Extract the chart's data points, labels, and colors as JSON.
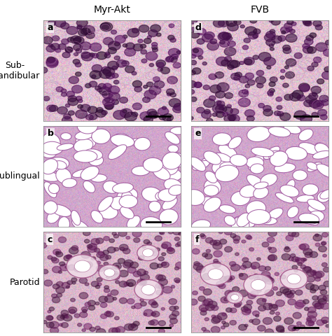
{
  "title_left": "Myr-Akt",
  "title_right": "FVB",
  "row_labels": [
    "Sub-\nmandibular",
    "Sublingual",
    "Parotid"
  ],
  "panel_labels": [
    [
      "a",
      "d"
    ],
    [
      "b",
      "e"
    ],
    [
      "c",
      "f"
    ]
  ],
  "background_color": "#ffffff",
  "label_fontsize": 9,
  "title_fontsize": 10,
  "panel_label_fontsize": 9,
  "colors": {
    "submandibular": {
      "base": "#d4a0c0",
      "cell_dark": "#7b3f7a",
      "cell_mid": "#c080a0",
      "bg": "#f0d0e0"
    },
    "sublingual": {
      "base": "#c090b8",
      "cell_dark": "#8050a0",
      "vacuole": "#ffffff",
      "bg": "#e8c0d8"
    },
    "parotid": {
      "base": "#d8a8c8",
      "cell_dark": "#904070",
      "duct": "#f0e0e8",
      "bg": "#e8c8d8"
    }
  }
}
